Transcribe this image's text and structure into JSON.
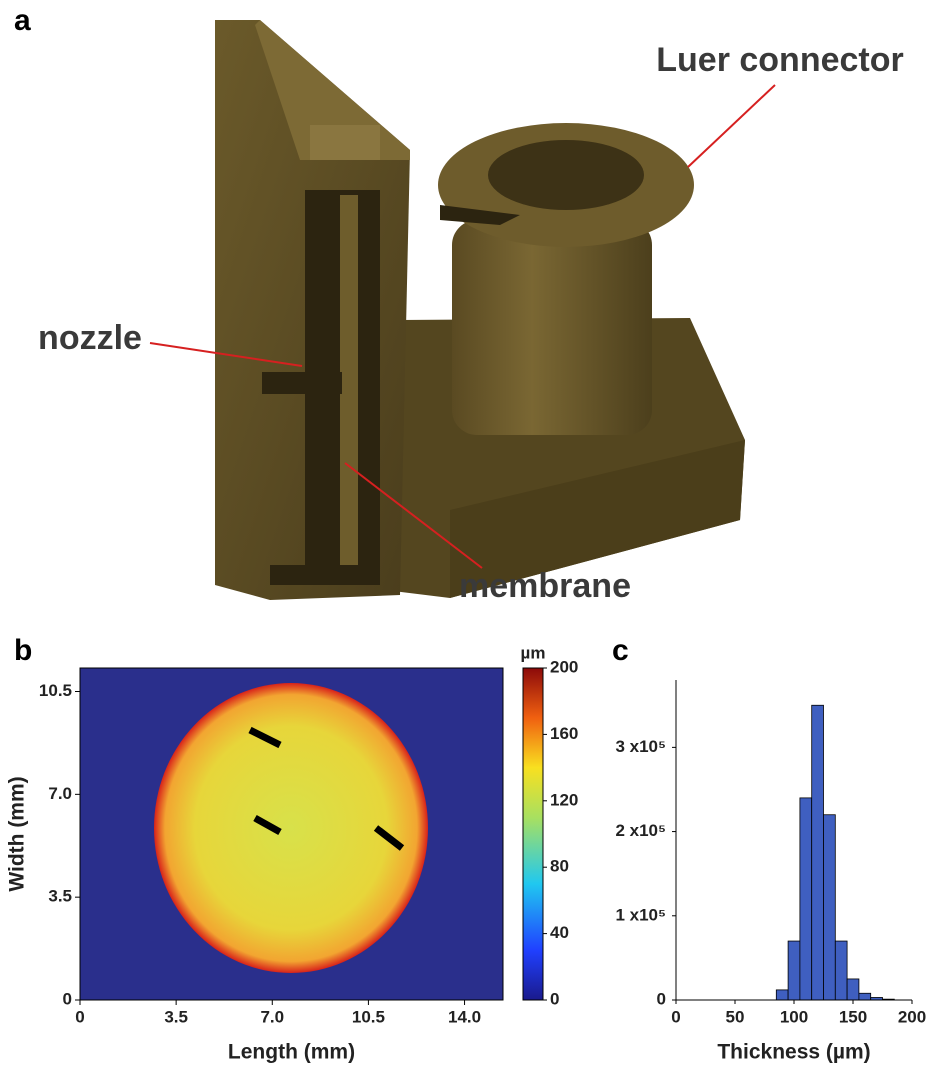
{
  "panel_a": {
    "panel_label": "a",
    "labels": [
      "Luer connector",
      "nozzle",
      "membrane"
    ]
  },
  "chart_data": [
    {
      "type": "heatmap",
      "panel_label": "b",
      "x_label": "Length (mm)",
      "y_label": "Width (mm)",
      "xlim": [
        0,
        15.4
      ],
      "xticks": [
        0,
        3.5,
        {
          "value": 7,
          "label": "7.0"
        },
        10.5,
        {
          "value": 14,
          "label": "14.0"
        }
      ],
      "ylim": [
        0,
        11.3
      ],
      "yticks": [
        0,
        3.5,
        {
          "value": 7,
          "label": "7.0"
        },
        10.5
      ],
      "colorbar": {
        "unit": "µm",
        "lim": [
          0,
          200
        ],
        "ticks": [
          0,
          40,
          80,
          120,
          160,
          200
        ]
      }
    },
    {
      "type": "histogram",
      "panel_label": "c",
      "x_label": "Thickness (µm)",
      "bins": [
        85,
        95,
        105,
        115,
        125,
        135,
        145,
        155,
        165,
        175,
        185
      ],
      "values": [
        12000,
        70000,
        240000,
        350000,
        220000,
        70000,
        25000,
        8000,
        3000,
        1000
      ],
      "color": "#3f5fc0",
      "xlim": [
        0,
        200
      ],
      "xticks": [
        0,
        50,
        100,
        150,
        200
      ],
      "ylim": [
        0,
        380000
      ],
      "yticks": [
        0,
        {
          "value": 100000,
          "label": "1 x10⁵"
        },
        {
          "value": 200000,
          "label": "2 x10⁵"
        },
        {
          "value": 300000,
          "label": "3 x10⁵"
        }
      ]
    }
  ]
}
